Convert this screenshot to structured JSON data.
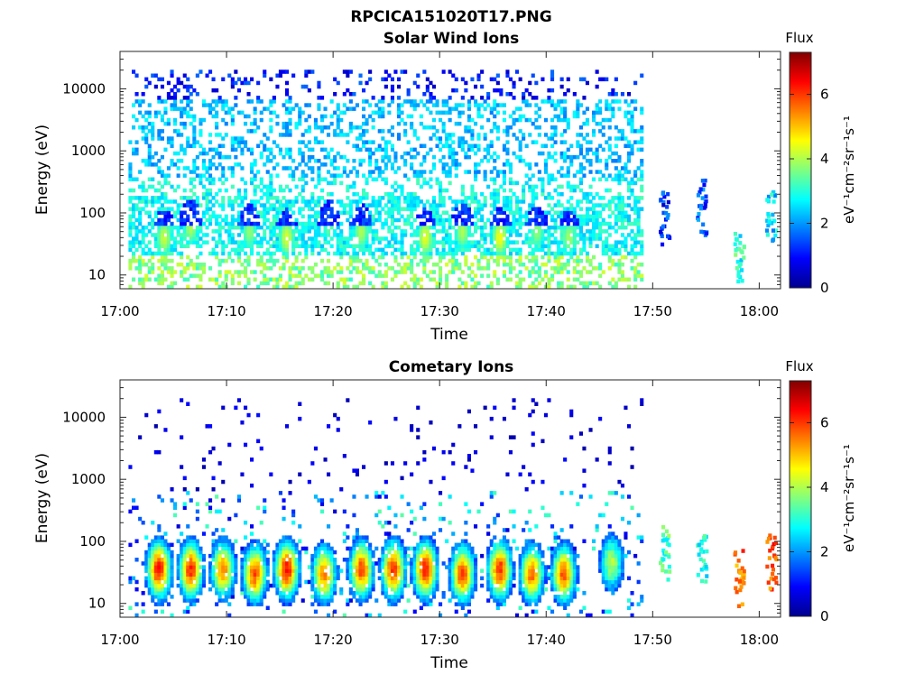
{
  "figure_title": "RPCICA151020T17.PNG",
  "chart_data": [
    {
      "type": "heatmap",
      "title": "Solar Wind Ions",
      "xlabel": "Time",
      "ylabel": "Energy (eV)",
      "x_tick_labels": [
        "17:00",
        "17:10",
        "17:20",
        "17:30",
        "17:40",
        "17:50",
        "18:00"
      ],
      "x_ticks_minutes": [
        0,
        10,
        20,
        30,
        40,
        50,
        60
      ],
      "xlim_minutes": [
        0,
        62
      ],
      "y_scale": "log",
      "ylim": [
        6,
        40000
      ],
      "y_ticks": [
        10,
        100,
        1000,
        10000
      ],
      "y_tick_labels": [
        "10",
        "100",
        "1000",
        "10000"
      ],
      "colorbar": {
        "title": "Flux",
        "label": "eV⁻¹cm⁻²sr⁻¹s⁻¹",
        "range": [
          0,
          7.3
        ],
        "ticks": [
          0,
          2,
          4,
          6
        ],
        "colormap": "jet"
      },
      "data_end_minute": 49,
      "data_description": "sparse 2-4 flux across 30-20000 eV; 3-4.5 bands at 10-60 eV; intermittent 100 eV blue bursts",
      "bursts": [
        {
          "t": 4,
          "E": 40,
          "v": 4.2
        },
        {
          "t": 6.5,
          "E": 60,
          "v": 4.0
        },
        {
          "t": 12,
          "E": 50,
          "v": 3.8
        },
        {
          "t": 15.5,
          "E": 40,
          "v": 4.3
        },
        {
          "t": 19.5,
          "E": 60,
          "v": 3.5
        },
        {
          "t": 22.5,
          "E": 50,
          "v": 4.0
        },
        {
          "t": 28.5,
          "E": 40,
          "v": 4.4
        },
        {
          "t": 32,
          "E": 50,
          "v": 4.0
        },
        {
          "t": 35.5,
          "E": 40,
          "v": 4.5
        },
        {
          "t": 39,
          "E": 50,
          "v": 3.8
        },
        {
          "t": 42,
          "E": 40,
          "v": 3.9
        }
      ],
      "late_events": [
        {
          "t": 51,
          "E": 80,
          "v": 1.2
        },
        {
          "t": 54.5,
          "E": 120,
          "v": 1.5
        },
        {
          "t": 58,
          "E": 20,
          "v": 3.0
        },
        {
          "t": 61,
          "E": 100,
          "v": 2.5
        }
      ]
    },
    {
      "type": "heatmap",
      "title": "Cometary Ions",
      "xlabel": "Time",
      "ylabel": "Energy (eV)",
      "x_tick_labels": [
        "17:00",
        "17:10",
        "17:20",
        "17:30",
        "17:40",
        "17:50",
        "18:00"
      ],
      "x_ticks_minutes": [
        0,
        10,
        20,
        30,
        40,
        50,
        60
      ],
      "xlim_minutes": [
        0,
        62
      ],
      "y_scale": "log",
      "ylim": [
        6,
        40000
      ],
      "y_ticks": [
        10,
        100,
        1000,
        10000
      ],
      "y_tick_labels": [
        "10",
        "100",
        "1000",
        "10000"
      ],
      "colorbar": {
        "title": "Flux",
        "label": "eV⁻¹cm⁻²sr⁻¹s⁻¹",
        "range": [
          0,
          7.3
        ],
        "ticks": [
          0,
          2,
          4,
          6
        ],
        "colormap": "jet"
      },
      "data_end_minute": 49,
      "data_description": "periodic bursts peaking 5-6 flux at 20-50 eV; sparse low-flux dots up to 10000 eV",
      "bursts": [
        {
          "t": 3.5,
          "E": 35,
          "v": 6.0
        },
        {
          "t": 6.5,
          "E": 35,
          "v": 5.8
        },
        {
          "t": 9.5,
          "E": 35,
          "v": 5.2
        },
        {
          "t": 12.5,
          "E": 30,
          "v": 5.5
        },
        {
          "t": 15.5,
          "E": 35,
          "v": 6.0
        },
        {
          "t": 19,
          "E": 30,
          "v": 5.2
        },
        {
          "t": 22.5,
          "E": 35,
          "v": 5.6
        },
        {
          "t": 25.5,
          "E": 35,
          "v": 5.8
        },
        {
          "t": 28.5,
          "E": 35,
          "v": 5.9
        },
        {
          "t": 32,
          "E": 30,
          "v": 5.6
        },
        {
          "t": 35.5,
          "E": 35,
          "v": 5.8
        },
        {
          "t": 38.5,
          "E": 30,
          "v": 5.3
        },
        {
          "t": 41.5,
          "E": 30,
          "v": 5.5
        },
        {
          "t": 46,
          "E": 45,
          "v": 3.8
        }
      ],
      "late_events": [
        {
          "t": 51,
          "E": 60,
          "v": 3.2
        },
        {
          "t": 54.5,
          "E": 50,
          "v": 3.0
        },
        {
          "t": 58,
          "E": 25,
          "v": 5.5
        },
        {
          "t": 61,
          "E": 45,
          "v": 5.8
        }
      ]
    }
  ]
}
